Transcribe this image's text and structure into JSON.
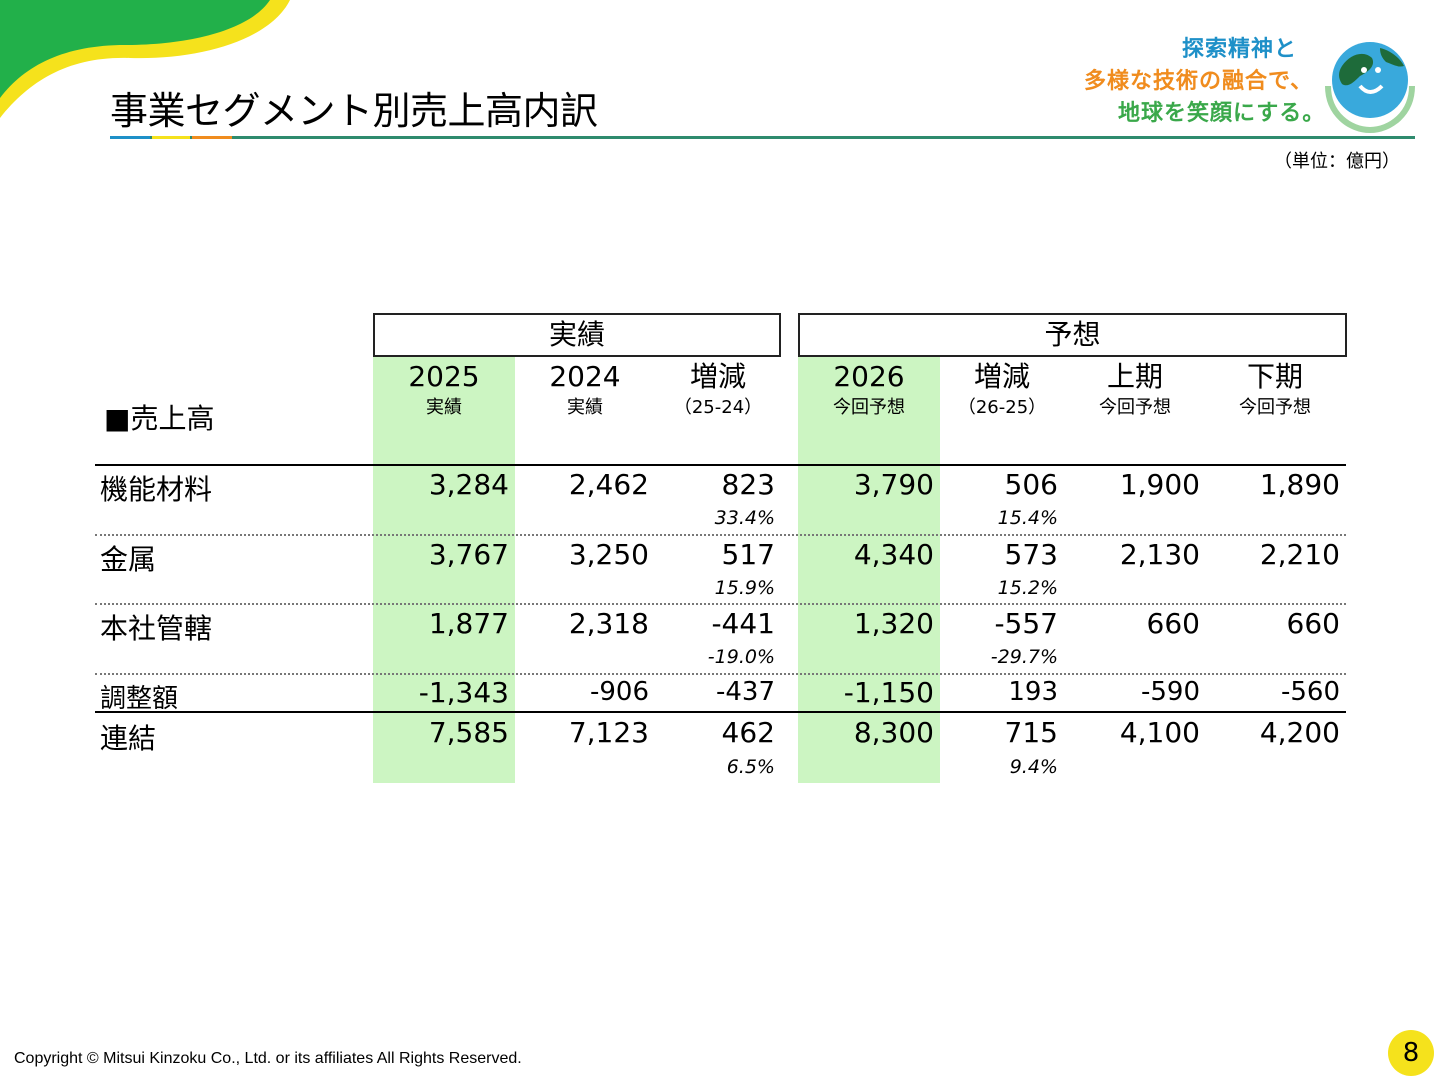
{
  "header": {
    "title": "事業セグメント別売上高内訳",
    "slogan": [
      "探索精神と",
      "多様な技術の融合で、",
      "地球を笑顔にする。"
    ],
    "unit": "（単位：億円）"
  },
  "table": {
    "section_label": "■売上高",
    "groups": {
      "actual": "実績",
      "forecast": "予想"
    },
    "columns": [
      {
        "t1": "2025",
        "t2": "実績"
      },
      {
        "t1": "2024",
        "t2": "実績"
      },
      {
        "t1": "増減",
        "t2": "（25-24）"
      },
      {
        "t1": "2026",
        "t2": "今回予想"
      },
      {
        "t1": "増減",
        "t2": "（26-25）"
      },
      {
        "t1": "上期",
        "t2": "今回予想"
      },
      {
        "t1": "下期",
        "t2": "今回予想"
      }
    ],
    "rows": [
      {
        "label": "機能材料",
        "values": [
          "3,284",
          "2,462",
          "823",
          "3,790",
          "506",
          "1,900",
          "1,890"
        ],
        "pct": [
          "33.4%",
          "15.4%"
        ]
      },
      {
        "label": "金属",
        "values": [
          "3,767",
          "3,250",
          "517",
          "4,340",
          "573",
          "2,130",
          "2,210"
        ],
        "pct": [
          "15.9%",
          "15.2%"
        ]
      },
      {
        "label": "本社管轄",
        "values": [
          "1,877",
          "2,318",
          "-441",
          "1,320",
          "-557",
          "660",
          "660"
        ],
        "pct": [
          "-19.0%",
          "-29.7%"
        ]
      },
      {
        "label": "調整額",
        "values": [
          "-1,343",
          "-906",
          "-437",
          "-1,150",
          "193",
          "-590",
          "-560"
        ]
      },
      {
        "label": "連結",
        "values": [
          "7,585",
          "7,123",
          "462",
          "8,300",
          "715",
          "4,100",
          "4,200"
        ],
        "pct": [
          "6.5%",
          "9.4%"
        ]
      }
    ]
  },
  "footer": {
    "copyright": "Copyright © Mitsui Kinzoku Co., Ltd. or its affiliates All Rights Reserved.",
    "page": "8"
  },
  "colors": {
    "accent_green": "#2e8b6e",
    "highlight_green": "#ccf5c2",
    "corner_green": "#22b04a",
    "corner_yellow": "#f5e21c",
    "slogan_blue": "#1e90c8",
    "slogan_orange": "#f08c1e",
    "slogan_green": "#3aa84a"
  },
  "icons": {
    "logo": "globe-hands-logo"
  }
}
